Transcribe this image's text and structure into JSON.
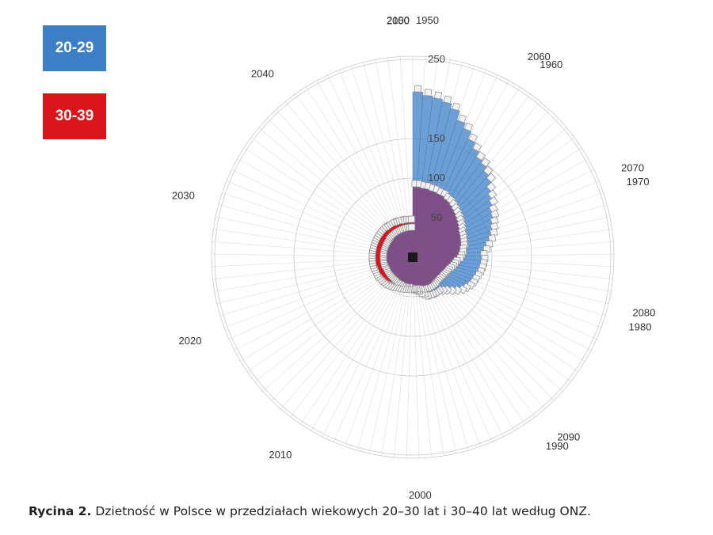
{
  "chart_data": {
    "type": "radial-bar",
    "series": [
      {
        "name": "20-29",
        "color": "#3d7fc6",
        "start_year": 1950,
        "values": [
          209,
          205,
          203,
          200,
          194,
          182,
          175,
          165,
          157,
          150,
          147,
          141,
          137,
          129,
          124,
          120,
          115,
          113,
          109,
          106,
          103,
          99,
          94,
          90,
          86,
          87,
          86,
          85,
          84,
          82,
          80,
          79,
          77,
          74,
          71,
          66,
          61,
          56,
          53,
          50,
          50,
          50,
          49,
          49,
          48,
          45,
          43,
          40,
          38,
          37,
          35,
          35,
          34,
          35,
          34,
          35,
          34,
          33,
          33,
          33,
          33,
          32,
          32,
          32,
          32,
          32,
          32,
          32,
          32,
          32,
          32,
          33,
          33,
          33,
          33,
          33,
          33,
          33,
          33,
          33,
          33,
          33,
          33,
          33,
          33,
          33,
          33,
          34,
          34,
          34,
          34,
          34,
          34,
          34,
          34,
          34,
          34,
          34,
          34,
          34,
          34
        ]
      },
      {
        "name": "30-39",
        "color": "#d9141b",
        "start_year": 1950,
        "values": [
          89,
          89,
          88,
          88,
          87,
          87,
          86,
          86,
          84,
          83,
          81,
          79,
          77,
          75,
          73,
          71,
          69,
          67,
          66,
          65,
          64,
          63,
          61,
          60,
          58,
          56,
          52,
          50,
          48,
          46,
          44,
          43,
          42,
          41,
          40,
          40,
          39,
          39,
          39,
          40,
          40,
          40,
          40,
          40,
          39,
          39,
          38,
          37,
          36,
          36,
          36,
          36,
          37,
          37,
          37,
          38,
          38,
          39,
          39,
          40,
          41,
          42,
          43,
          44,
          44,
          45,
          45,
          46,
          46,
          46,
          46,
          47,
          47,
          47,
          47,
          47,
          47,
          47,
          47,
          47,
          47,
          47,
          47,
          47,
          47,
          47,
          47,
          47,
          47,
          47,
          46,
          46,
          46,
          46,
          45,
          45,
          45,
          44,
          44,
          44,
          44
        ]
      }
    ],
    "overlap_color": "#7e4f86",
    "radial_ticks": [
      50,
      100,
      150,
      250
    ],
    "r_max": 300,
    "year_labels": [
      "1950",
      "1960",
      "1970",
      "1980",
      "1990",
      "2000",
      "2010",
      "2020",
      "2030",
      "2040",
      "2050",
      "2060",
      "2070",
      "2080",
      "2090",
      "2100"
    ]
  },
  "legend": {
    "s1_label": "20-29",
    "s2_label": "30-39"
  },
  "caption": {
    "prefix": "Rycina 2.",
    "text": " Dzietność w Polsce w przedziałach wiekowych 20–30 lat i 30–40 lat według ONZ."
  }
}
